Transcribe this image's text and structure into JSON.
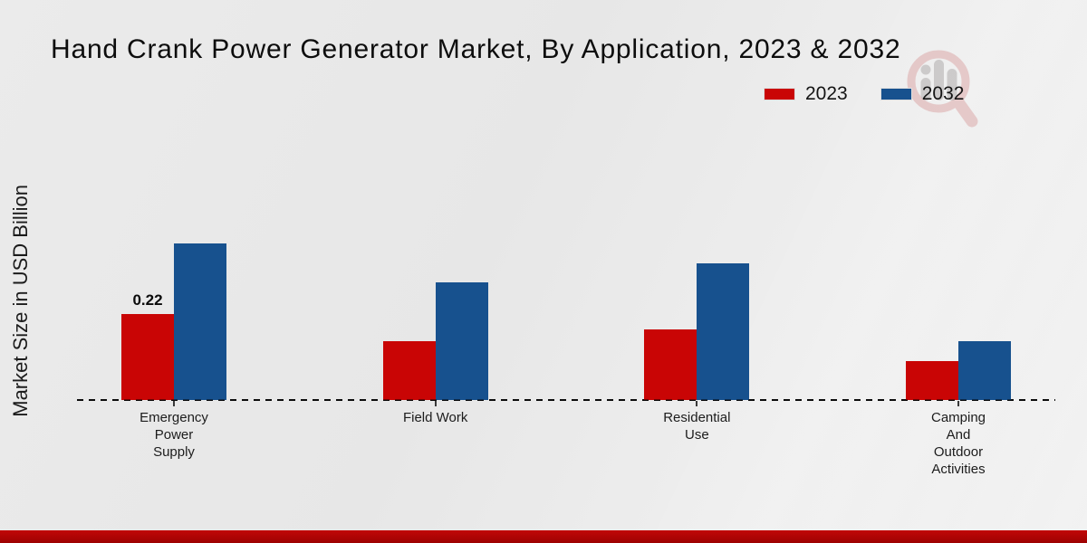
{
  "page": {
    "title": "Hand Crank Power Generator Market, By Application, 2023 & 2032"
  },
  "legend": {
    "items": [
      {
        "label": "2023",
        "color": "#c90505"
      },
      {
        "label": "2032",
        "color": "#17518e"
      }
    ]
  },
  "watermark": {
    "name": "market-research-future-logo"
  },
  "chart_data": {
    "type": "bar",
    "title": "Hand Crank Power Generator Market, By Application, 2023 & 2032",
    "xlabel": "",
    "ylabel": "Market Size in USD Billion",
    "ylim": [
      0,
      0.45
    ],
    "grid": false,
    "legend_position": "top-right",
    "baseline_style": "dashed",
    "categories": [
      "Emergency Power Supply",
      "Field Work",
      "Residential Use",
      "Camping And Outdoor Activities"
    ],
    "categories_display": [
      [
        "Emergency",
        "Power",
        "Supply"
      ],
      [
        "Field Work"
      ],
      [
        "Residential",
        "Use"
      ],
      [
        "Camping",
        "And",
        "Outdoor",
        "Activities"
      ]
    ],
    "series": [
      {
        "name": "2023",
        "color": "#c90505",
        "values": [
          0.22,
          0.15,
          0.18,
          0.1
        ]
      },
      {
        "name": "2032",
        "color": "#17518e",
        "values": [
          0.4,
          0.3,
          0.35,
          0.15
        ]
      }
    ],
    "data_labels": [
      {
        "series": "2023",
        "category_index": 0,
        "text": "0.22"
      }
    ],
    "colors": {
      "accent_red": "#c90505",
      "accent_blue": "#17518e",
      "footer_red": "#b20505"
    }
  }
}
